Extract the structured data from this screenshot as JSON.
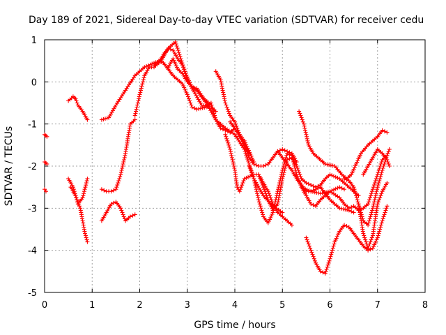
{
  "chart_data": {
    "type": "scatter",
    "title": "Day 189 of 2021, Sidereal Day-to-day VTEC variation (SDTVAR) for receiver cedu",
    "xlabel": "GPS time / hours",
    "ylabel": "SDTVAR / TECUs",
    "xlim": [
      0,
      8
    ],
    "ylim": [
      -5,
      1
    ],
    "xticks": [
      "0",
      "1",
      "2",
      "3",
      "4",
      "5",
      "6",
      "7",
      "8"
    ],
    "yticks": [
      "1",
      "0",
      "-1",
      "-2",
      "-3",
      "-4",
      "-5"
    ],
    "grid": true,
    "marker": "plus",
    "color": "#ff0000",
    "series": [
      {
        "name": "s1",
        "x": [
          0.0,
          0.05
        ],
        "y": [
          -1.25,
          -1.3
        ]
      },
      {
        "name": "s2",
        "x": [
          0.0,
          0.05
        ],
        "y": [
          -1.9,
          -1.95
        ]
      },
      {
        "name": "s3",
        "x": [
          0.0,
          0.03
        ],
        "y": [
          -2.55,
          -2.6
        ]
      },
      {
        "name": "s4",
        "x": [
          0.5,
          0.6,
          0.65,
          0.7,
          0.8,
          0.9
        ],
        "y": [
          -0.45,
          -0.35,
          -0.4,
          -0.55,
          -0.7,
          -0.9
        ]
      },
      {
        "name": "s5",
        "x": [
          0.5,
          0.6,
          0.7,
          0.8,
          0.9
        ],
        "y": [
          -2.3,
          -2.5,
          -2.9,
          -2.75,
          -2.3
        ]
      },
      {
        "name": "s6",
        "x": [
          0.55,
          0.65,
          0.75,
          0.8,
          0.85,
          0.9
        ],
        "y": [
          -2.5,
          -2.7,
          -3.0,
          -3.3,
          -3.6,
          -3.8
        ]
      },
      {
        "name": "s7",
        "x": [
          1.2,
          1.3,
          1.4,
          1.5,
          1.6,
          1.7,
          1.8,
          1.9
        ],
        "y": [
          -3.3,
          -3.1,
          -2.9,
          -2.85,
          -3.0,
          -3.3,
          -3.2,
          -3.15
        ]
      },
      {
        "name": "s8",
        "x": [
          1.2,
          1.3,
          1.4,
          1.5,
          1.6,
          1.7,
          1.8,
          1.9
        ],
        "y": [
          -2.55,
          -2.6,
          -2.6,
          -2.55,
          -2.2,
          -1.7,
          -1.0,
          -0.9
        ]
      },
      {
        "name": "s9",
        "x": [
          1.2,
          1.35,
          1.5,
          1.7,
          1.9,
          2.1,
          2.3,
          2.45,
          2.55,
          2.65,
          2.75,
          2.85,
          2.95,
          3.1,
          3.3,
          3.5,
          3.6
        ],
        "y": [
          -0.9,
          -0.85,
          -0.55,
          -0.2,
          0.15,
          0.35,
          0.45,
          0.5,
          0.7,
          0.85,
          0.95,
          0.6,
          0.25,
          -0.15,
          -0.55,
          -0.6,
          -0.7
        ]
      },
      {
        "name": "s10",
        "x": [
          1.9,
          2.0,
          2.1,
          2.2,
          2.3,
          2.4,
          2.5,
          2.6,
          2.7,
          2.8,
          2.9,
          3.0,
          3.1,
          3.2,
          3.35,
          3.5
        ],
        "y": [
          -0.8,
          -0.3,
          0.15,
          0.35,
          0.35,
          0.45,
          0.65,
          0.8,
          0.75,
          0.55,
          0.4,
          0.05,
          -0.15,
          -0.15,
          -0.4,
          -0.55
        ]
      },
      {
        "name": "s11",
        "x": [
          2.3,
          2.4,
          2.5,
          2.6,
          2.7,
          2.8,
          2.9,
          3.0,
          3.1,
          3.2,
          3.4,
          3.5,
          3.6,
          3.7,
          3.8,
          3.9,
          4.0,
          4.2,
          4.4
        ],
        "y": [
          0.4,
          0.5,
          0.45,
          0.3,
          0.15,
          0.05,
          -0.05,
          -0.3,
          -0.6,
          -0.65,
          -0.6,
          -0.5,
          -0.9,
          -1.1,
          -1.15,
          -1.2,
          -1.1,
          -1.4,
          -1.9
        ]
      },
      {
        "name": "s12",
        "x": [
          2.6,
          2.7,
          2.8,
          2.9,
          3.0,
          3.2,
          3.4,
          3.6,
          3.8,
          4.0,
          4.2,
          4.4,
          4.6,
          4.8,
          5.0
        ],
        "y": [
          0.35,
          0.55,
          0.3,
          0.2,
          0.0,
          -0.2,
          -0.5,
          -0.9,
          -1.1,
          -1.25,
          -1.6,
          -2.3,
          -2.7,
          -2.95,
          -3.1
        ]
      },
      {
        "name": "s13",
        "x": [
          3.6,
          3.7,
          3.8,
          3.9,
          4.0,
          4.1,
          4.2,
          4.3
        ],
        "y": [
          0.25,
          0.05,
          -0.5,
          -0.8,
          -0.95,
          -1.25,
          -1.5,
          -1.7
        ]
      },
      {
        "name": "s14",
        "x": [
          3.8,
          3.9,
          4.0,
          4.05,
          4.1,
          4.2,
          4.4,
          4.5,
          4.6,
          4.7,
          4.8,
          4.9,
          5.0,
          5.1,
          5.2
        ],
        "y": [
          -1.25,
          -1.6,
          -2.1,
          -2.5,
          -2.6,
          -2.3,
          -2.2,
          -2.2,
          -2.4,
          -2.6,
          -2.9,
          -3.1,
          -3.2,
          -3.3,
          -3.4
        ]
      },
      {
        "name": "s15",
        "x": [
          3.9,
          4.0,
          4.1,
          4.2,
          4.3,
          4.4,
          4.5,
          4.6,
          4.7,
          4.8,
          4.9,
          5.0,
          5.1,
          5.2,
          5.3
        ],
        "y": [
          -0.95,
          -1.1,
          -1.3,
          -1.5,
          -1.8,
          -1.95,
          -2.0,
          -2.0,
          -1.95,
          -1.8,
          -1.65,
          -1.6,
          -1.65,
          -1.7,
          -1.9
        ]
      },
      {
        "name": "s16",
        "x": [
          4.3,
          4.4,
          4.5,
          4.6,
          4.7,
          4.8,
          4.9,
          5.0,
          5.1,
          5.2,
          5.3,
          5.4,
          5.5,
          5.6,
          5.7,
          5.8,
          6.0,
          6.2,
          6.3
        ],
        "y": [
          -2.0,
          -2.3,
          -2.8,
          -3.2,
          -3.35,
          -3.1,
          -2.6,
          -2.1,
          -1.7,
          -1.75,
          -2.2,
          -2.5,
          -2.7,
          -2.9,
          -2.95,
          -2.8,
          -2.6,
          -2.5,
          -2.55
        ]
      },
      {
        "name": "s17",
        "x": [
          4.5,
          4.6,
          4.7,
          4.8,
          4.9,
          5.0,
          5.1,
          5.2,
          5.3,
          5.4,
          5.5,
          5.6,
          5.7,
          5.8,
          5.9,
          6.0,
          6.2,
          6.4,
          6.6
        ],
        "y": [
          -2.2,
          -2.5,
          -2.8,
          -3.05,
          -2.9,
          -2.3,
          -1.85,
          -1.8,
          -2.0,
          -2.3,
          -2.4,
          -2.45,
          -2.5,
          -2.45,
          -2.3,
          -2.2,
          -2.3,
          -2.5,
          -2.7
        ]
      },
      {
        "name": "s18",
        "x": [
          4.9,
          5.0,
          5.1,
          5.2,
          5.3,
          5.4,
          5.5,
          5.6,
          5.7,
          5.8,
          6.0,
          6.2,
          6.4,
          6.5
        ],
        "y": [
          -1.65,
          -1.8,
          -1.95,
          -2.1,
          -2.3,
          -2.45,
          -2.6,
          -2.6,
          -2.55,
          -2.5,
          -2.8,
          -3.0,
          -3.05,
          -3.1
        ]
      },
      {
        "name": "s19",
        "x": [
          5.4,
          5.6,
          5.8,
          6.0,
          6.2,
          6.3,
          6.4,
          6.5,
          6.6,
          6.7,
          6.8,
          6.9,
          7.0,
          7.1,
          7.2
        ],
        "y": [
          -2.5,
          -2.6,
          -2.65,
          -2.6,
          -2.75,
          -2.9,
          -3.0,
          -2.95,
          -3.05,
          -3.0,
          -2.9,
          -2.55,
          -2.2,
          -1.85,
          -1.75
        ]
      },
      {
        "name": "s20",
        "x": [
          5.35,
          5.45,
          5.55,
          5.65,
          5.75,
          5.9,
          6.1,
          6.25,
          6.35,
          6.45,
          6.55,
          6.65,
          6.8,
          6.9,
          7.0,
          7.1,
          7.2
        ],
        "y": [
          -0.7,
          -1.0,
          -1.5,
          -1.7,
          -1.8,
          -1.95,
          -2.0,
          -2.2,
          -2.3,
          -2.2,
          -1.95,
          -1.7,
          -1.5,
          -1.4,
          -1.3,
          -1.15,
          -1.2
        ]
      },
      {
        "name": "s21",
        "x": [
          5.5,
          5.6,
          5.7,
          5.8,
          5.9,
          6.0,
          6.1,
          6.2,
          6.3,
          6.4,
          6.5,
          6.6,
          6.7,
          6.8,
          6.9,
          7.0,
          7.1,
          7.2
        ],
        "y": [
          -3.7,
          -4.0,
          -4.3,
          -4.5,
          -4.55,
          -4.2,
          -3.8,
          -3.55,
          -3.4,
          -3.45,
          -3.6,
          -3.75,
          -3.9,
          -4.0,
          -3.95,
          -3.7,
          -3.3,
          -2.95
        ]
      },
      {
        "name": "s22",
        "x": [
          6.3,
          6.4,
          6.5,
          6.6,
          6.7,
          6.8,
          6.9,
          7.0,
          7.1,
          7.2
        ],
        "y": [
          -2.3,
          -2.35,
          -2.5,
          -2.9,
          -3.6,
          -3.95,
          -3.65,
          -2.9,
          -2.6,
          -2.4
        ]
      },
      {
        "name": "s23",
        "x": [
          6.6,
          6.7,
          6.8,
          6.9,
          7.0,
          7.1,
          7.2,
          7.25
        ],
        "y": [
          -2.9,
          -3.3,
          -3.4,
          -3.0,
          -2.5,
          -2.1,
          -1.75,
          -1.6
        ]
      },
      {
        "name": "s24",
        "x": [
          6.7,
          6.8,
          6.9,
          7.0,
          7.1,
          7.2,
          7.25
        ],
        "y": [
          -2.2,
          -2.0,
          -1.8,
          -1.6,
          -1.7,
          -1.85,
          -2.0
        ]
      }
    ]
  }
}
